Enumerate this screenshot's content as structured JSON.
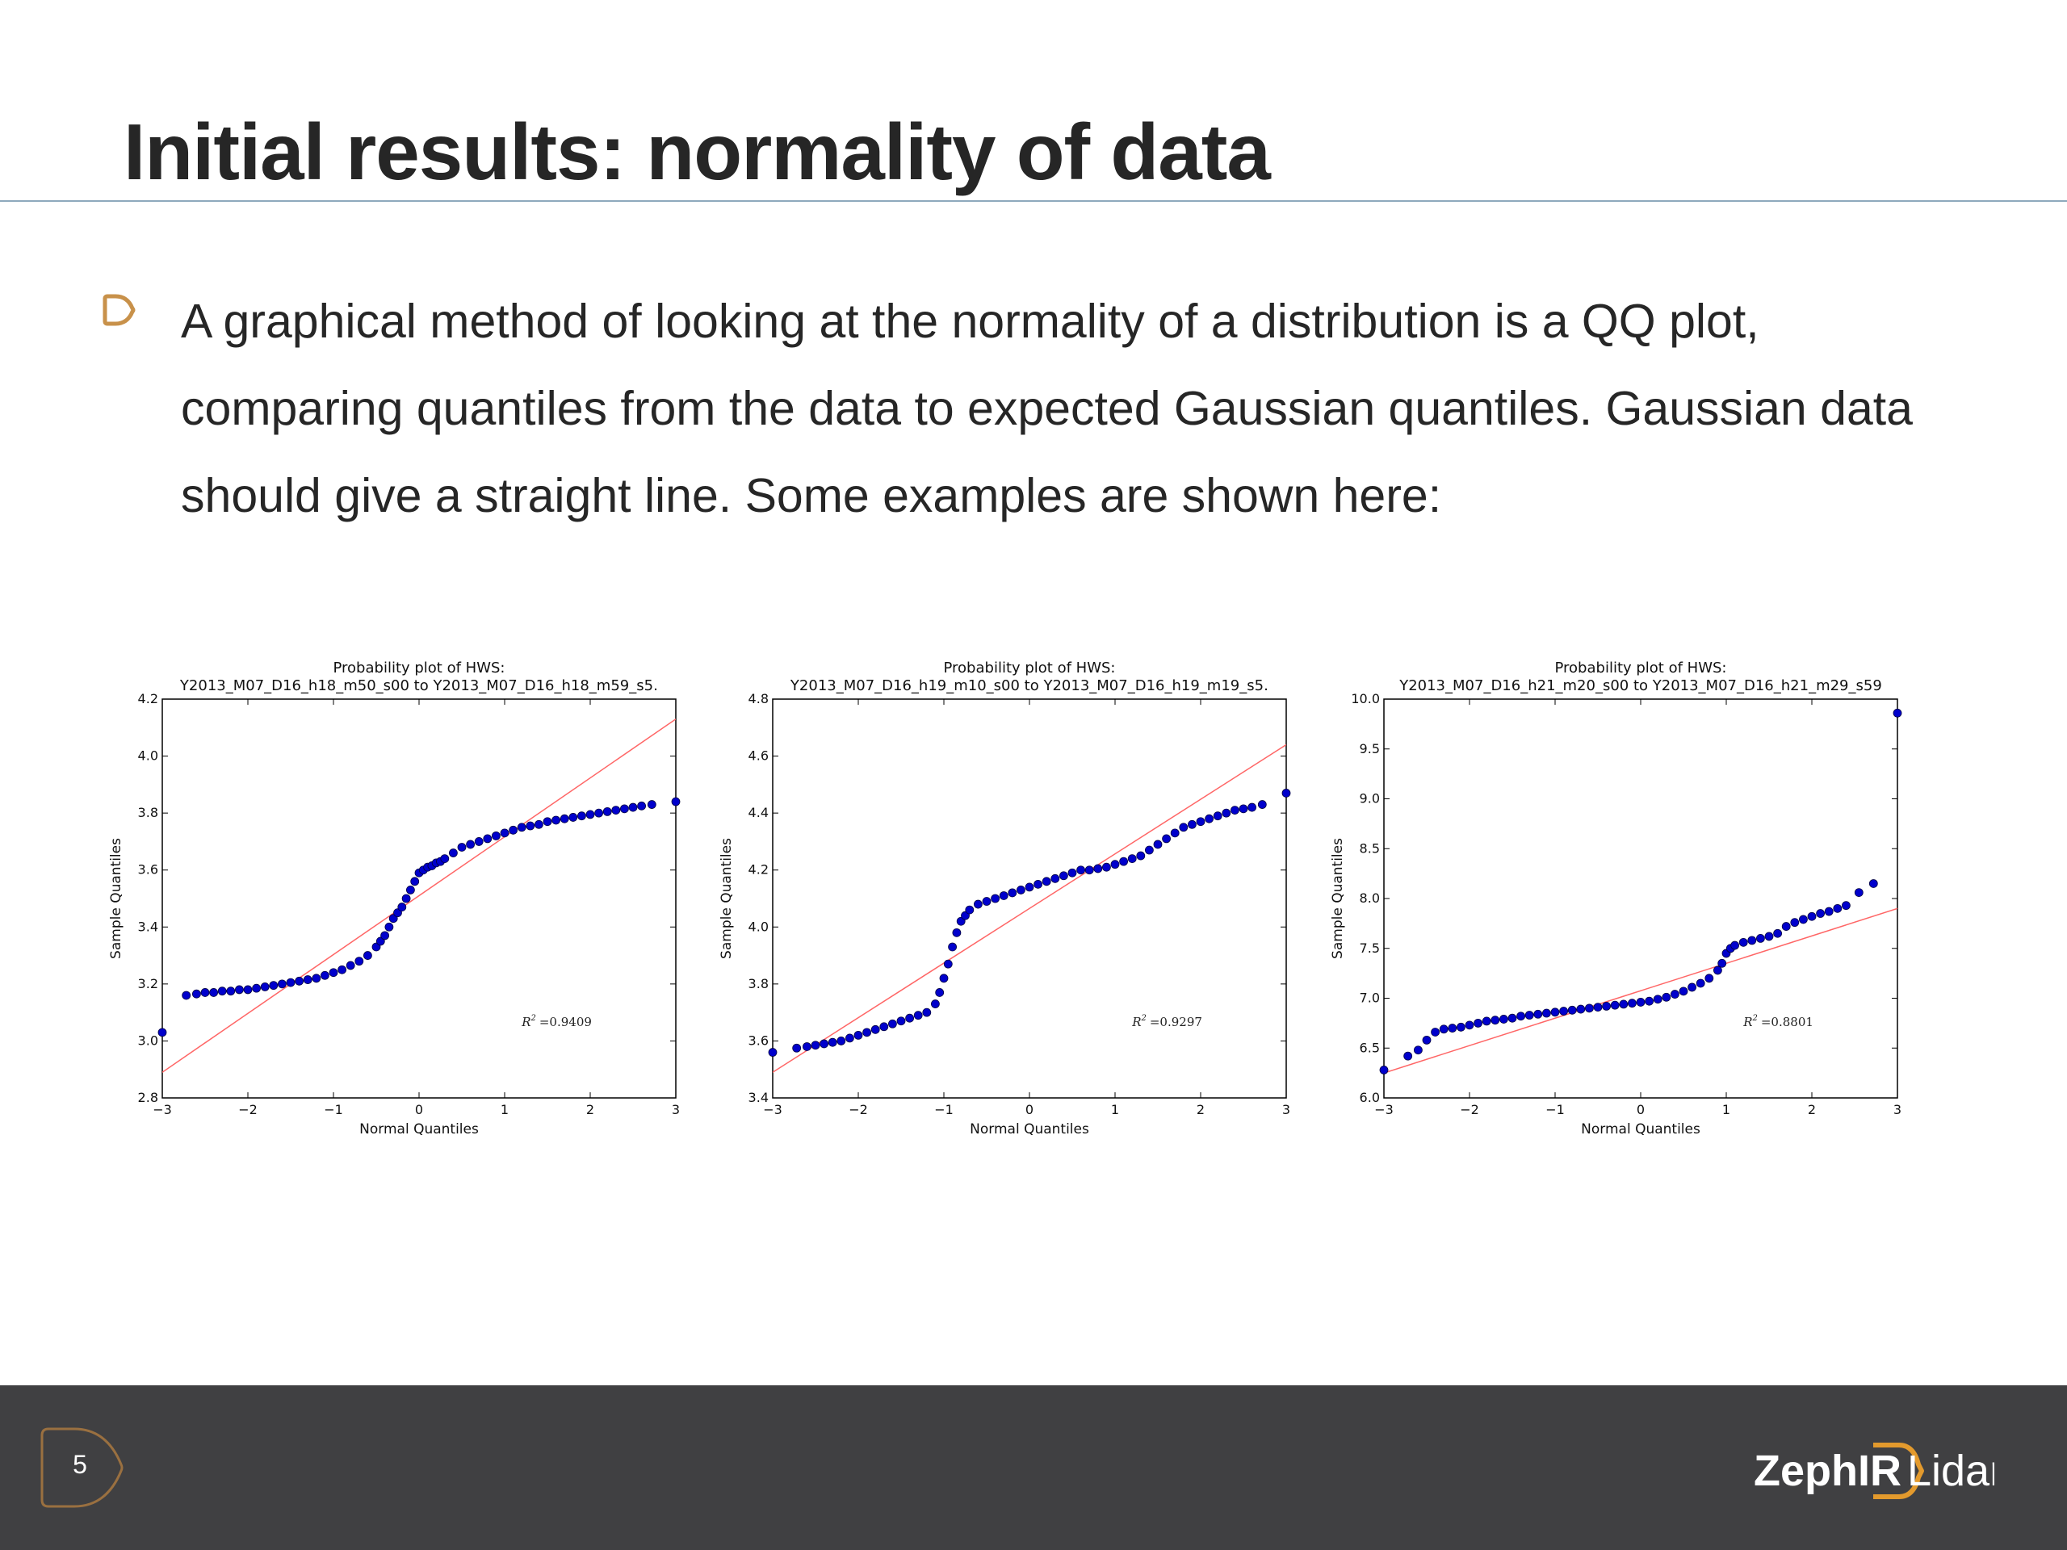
{
  "slide": {
    "title": "Initial results: normality of data",
    "bullet": "A graphical method of looking at the normality of a distribution is a QQ plot, comparing quantiles from the data to expected Gaussian quantiles. Gaussian data should give a straight line. Some examples are shown here:",
    "page_number": "5",
    "logo": {
      "brand": "ZephIR",
      "product": "Lidar"
    },
    "colors": {
      "accent": "#c8914a",
      "footer": "#404042",
      "rule": "#8ea9bd",
      "points": "#0000cc",
      "fit_line": "#ff6666"
    }
  },
  "chart_data": [
    {
      "type": "scatter",
      "title": [
        "Probability plot of HWS:",
        "Y2013_M07_D16_h18_m50_s00 to Y2013_M07_D16_h18_m59_s5․"
      ],
      "xlabel": "Normal Quantiles",
      "ylabel": "Sample Quantiles",
      "xlim": [
        -3,
        3
      ],
      "ylim": [
        2.8,
        4.2
      ],
      "xticks": [
        "−3",
        "−2",
        "−1",
        "0",
        "1",
        "2",
        "3"
      ],
      "yticks": [
        "2.8",
        "3.0",
        "3.2",
        "3.4",
        "3.6",
        "3.8",
        "4.0",
        "4.2"
      ],
      "r2_text": "=0.9409",
      "fit_line": {
        "x": [
          -3,
          3
        ],
        "y": [
          2.89,
          4.13
        ]
      },
      "series": [
        {
          "x": [
            -3.0,
            -2.72,
            -2.6,
            -2.5,
            -2.4,
            -2.3,
            -2.2,
            -2.1,
            -2.0,
            -1.9,
            -1.8,
            -1.7,
            -1.6,
            -1.5,
            -1.4,
            -1.3,
            -1.2,
            -1.1,
            -1.0,
            -0.9,
            -0.8,
            -0.7,
            -0.6,
            -0.5,
            -0.45,
            -0.4,
            -0.35,
            -0.3,
            -0.25,
            -0.2,
            -0.15,
            -0.1,
            -0.05,
            0.0,
            0.05,
            0.1,
            0.15,
            0.2,
            0.25,
            0.3,
            0.4,
            0.5,
            0.6,
            0.7,
            0.8,
            0.9,
            1.0,
            1.1,
            1.2,
            1.3,
            1.4,
            1.5,
            1.6,
            1.7,
            1.8,
            1.9,
            2.0,
            2.1,
            2.2,
            2.3,
            2.4,
            2.5,
            2.6,
            2.72,
            3.0
          ],
          "y": [
            3.03,
            3.16,
            3.165,
            3.17,
            3.17,
            3.175,
            3.175,
            3.18,
            3.18,
            3.185,
            3.19,
            3.195,
            3.2,
            3.205,
            3.21,
            3.215,
            3.22,
            3.23,
            3.24,
            3.25,
            3.265,
            3.28,
            3.3,
            3.33,
            3.35,
            3.37,
            3.4,
            3.43,
            3.45,
            3.47,
            3.5,
            3.53,
            3.56,
            3.59,
            3.6,
            3.61,
            3.615,
            3.625,
            3.63,
            3.64,
            3.66,
            3.68,
            3.69,
            3.7,
            3.71,
            3.72,
            3.73,
            3.74,
            3.75,
            3.755,
            3.76,
            3.77,
            3.775,
            3.78,
            3.785,
            3.79,
            3.795,
            3.8,
            3.805,
            3.81,
            3.815,
            3.82,
            3.825,
            3.83,
            3.84
          ]
        }
      ]
    },
    {
      "type": "scatter",
      "title": [
        "Probability plot of HWS:",
        "Y2013_M07_D16_h19_m10_s00 to Y2013_M07_D16_h19_m19_s5․"
      ],
      "xlabel": "Normal Quantiles",
      "ylabel": "Sample Quantiles",
      "xlim": [
        -3,
        3
      ],
      "ylim": [
        3.4,
        4.8
      ],
      "xticks": [
        "−3",
        "−2",
        "−1",
        "0",
        "1",
        "2",
        "3"
      ],
      "yticks": [
        "3.4",
        "3.6",
        "3.8",
        "4.0",
        "4.2",
        "4.4",
        "4.6",
        "4.8"
      ],
      "r2_text": "=0.9297",
      "fit_line": {
        "x": [
          -3,
          3
        ],
        "y": [
          3.49,
          4.64
        ]
      },
      "series": [
        {
          "x": [
            -3.0,
            -2.72,
            -2.6,
            -2.5,
            -2.4,
            -2.3,
            -2.2,
            -2.1,
            -2.0,
            -1.9,
            -1.8,
            -1.7,
            -1.6,
            -1.5,
            -1.4,
            -1.3,
            -1.2,
            -1.1,
            -1.05,
            -1.0,
            -0.95,
            -0.9,
            -0.85,
            -0.8,
            -0.75,
            -0.7,
            -0.6,
            -0.5,
            -0.4,
            -0.3,
            -0.2,
            -0.1,
            0.0,
            0.1,
            0.2,
            0.3,
            0.4,
            0.5,
            0.6,
            0.7,
            0.8,
            0.9,
            1.0,
            1.1,
            1.2,
            1.3,
            1.4,
            1.5,
            1.6,
            1.7,
            1.8,
            1.9,
            2.0,
            2.1,
            2.2,
            2.3,
            2.4,
            2.5,
            2.6,
            2.72,
            3.0
          ],
          "y": [
            3.56,
            3.575,
            3.58,
            3.585,
            3.59,
            3.595,
            3.6,
            3.61,
            3.62,
            3.63,
            3.64,
            3.65,
            3.66,
            3.67,
            3.68,
            3.69,
            3.7,
            3.73,
            3.77,
            3.82,
            3.87,
            3.93,
            3.98,
            4.02,
            4.04,
            4.06,
            4.08,
            4.09,
            4.1,
            4.11,
            4.12,
            4.13,
            4.14,
            4.15,
            4.16,
            4.17,
            4.18,
            4.19,
            4.2,
            4.2,
            4.205,
            4.21,
            4.22,
            4.23,
            4.24,
            4.25,
            4.27,
            4.29,
            4.31,
            4.33,
            4.35,
            4.36,
            4.37,
            4.38,
            4.39,
            4.4,
            4.41,
            4.415,
            4.42,
            4.43,
            4.47
          ]
        }
      ]
    },
    {
      "type": "scatter",
      "title": [
        "Probability plot of HWS:",
        "Y2013_M07_D16_h21_m20_s00 to Y2013_M07_D16_h21_m29_s59"
      ],
      "xlabel": "Normal Quantiles",
      "ylabel": "Sample Quantiles",
      "xlim": [
        -3,
        3
      ],
      "ylim": [
        6.0,
        10.0
      ],
      "xticks": [
        "−3",
        "−2",
        "−1",
        "0",
        "1",
        "2",
        "3"
      ],
      "yticks": [
        "6.0",
        "6.5",
        "7.0",
        "7.5",
        "8.0",
        "8.5",
        "9.0",
        "9.5",
        "10.0"
      ],
      "r2_text": "=0.8801",
      "fit_line": {
        "x": [
          -3,
          3
        ],
        "y": [
          6.25,
          7.9
        ]
      },
      "series": [
        {
          "x": [
            -3.0,
            -2.72,
            -2.6,
            -2.5,
            -2.4,
            -2.3,
            -2.2,
            -2.1,
            -2.0,
            -1.9,
            -1.8,
            -1.7,
            -1.6,
            -1.5,
            -1.4,
            -1.3,
            -1.2,
            -1.1,
            -1.0,
            -0.9,
            -0.8,
            -0.7,
            -0.6,
            -0.5,
            -0.4,
            -0.3,
            -0.2,
            -0.1,
            0.0,
            0.1,
            0.2,
            0.3,
            0.4,
            0.5,
            0.6,
            0.7,
            0.8,
            0.9,
            0.95,
            1.0,
            1.05,
            1.1,
            1.2,
            1.3,
            1.4,
            1.5,
            1.6,
            1.7,
            1.8,
            1.9,
            2.0,
            2.1,
            2.2,
            2.3,
            2.4,
            2.55,
            2.72,
            3.0
          ],
          "y": [
            6.28,
            6.42,
            6.48,
            6.58,
            6.66,
            6.69,
            6.7,
            6.71,
            6.73,
            6.75,
            6.77,
            6.78,
            6.79,
            6.8,
            6.82,
            6.83,
            6.84,
            6.85,
            6.86,
            6.87,
            6.88,
            6.89,
            6.9,
            6.91,
            6.92,
            6.93,
            6.94,
            6.95,
            6.96,
            6.97,
            6.99,
            7.01,
            7.04,
            7.07,
            7.11,
            7.15,
            7.2,
            7.28,
            7.35,
            7.45,
            7.5,
            7.53,
            7.56,
            7.58,
            7.6,
            7.62,
            7.65,
            7.72,
            7.76,
            7.79,
            7.82,
            7.85,
            7.87,
            7.9,
            7.93,
            8.06,
            8.15,
            9.86
          ]
        }
      ]
    }
  ]
}
